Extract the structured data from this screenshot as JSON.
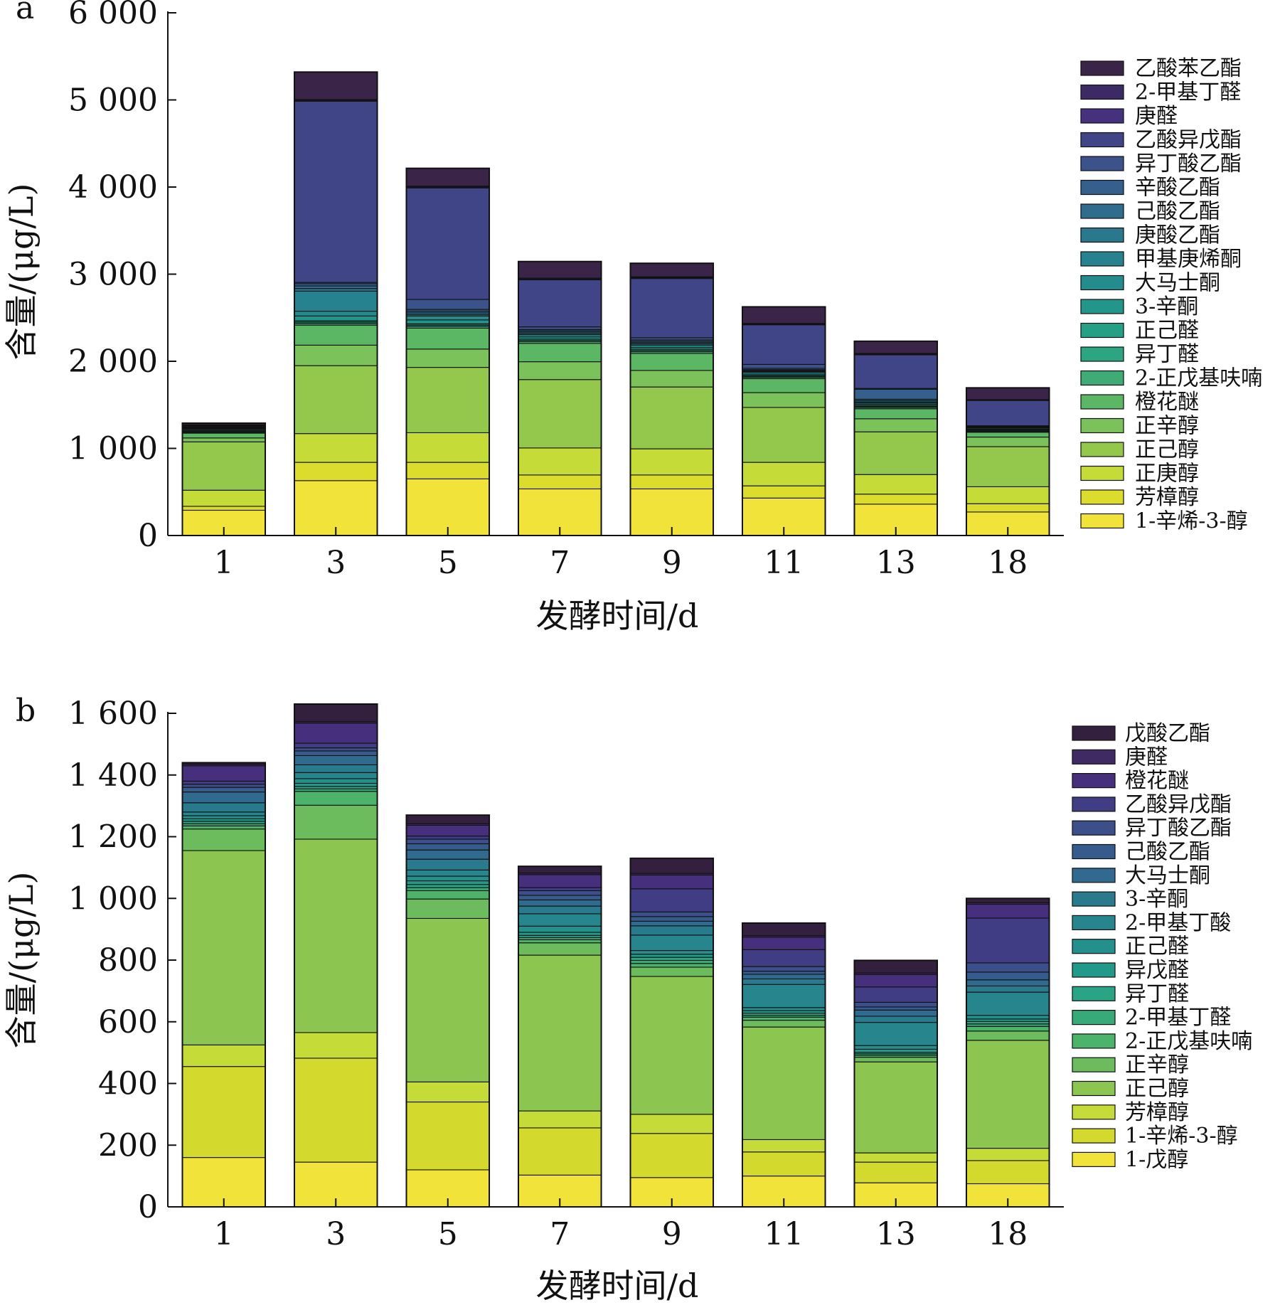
{
  "chart_data": [
    {
      "type": "stacked-bar",
      "panel_label": "a",
      "xlabel": "发酵时间/d",
      "ylabel": "含量/(μg/L)",
      "ylim": [
        0,
        6000
      ],
      "yticks": [
        0,
        1000,
        2000,
        3000,
        4000,
        5000,
        6000
      ],
      "ytick_labels": [
        "0",
        "1 000",
        "2 000",
        "3 000",
        "4 000",
        "5 000",
        "6 000"
      ],
      "categories": [
        "1",
        "3",
        "5",
        "7",
        "9",
        "11",
        "13",
        "18"
      ],
      "legend_position": "right",
      "series": [
        {
          "name": "1-辛烯-3-醇",
          "color": "#f2e33a",
          "values": [
            290,
            630,
            650,
            535,
            535,
            430,
            360,
            270
          ]
        },
        {
          "name": "芳樟醇",
          "color": "#dcdc2c",
          "values": [
            45,
            210,
            190,
            160,
            160,
            140,
            115,
            95
          ]
        },
        {
          "name": "正庚醇",
          "color": "#c4db38",
          "values": [
            185,
            330,
            340,
            310,
            300,
            270,
            225,
            195
          ]
        },
        {
          "name": "正己醇",
          "color": "#93c84c",
          "values": [
            555,
            780,
            750,
            785,
            710,
            630,
            490,
            460
          ]
        },
        {
          "name": "正辛醇",
          "color": "#7cc25a",
          "values": [
            45,
            235,
            210,
            205,
            190,
            170,
            150,
            110
          ]
        },
        {
          "name": "橙花醚",
          "color": "#5cb765",
          "values": [
            55,
            230,
            240,
            210,
            195,
            160,
            115,
            55
          ]
        },
        {
          "name": "2-正戊基呋喃",
          "color": "#3fac75",
          "values": [
            10,
            20,
            20,
            20,
            20,
            15,
            15,
            10
          ]
        },
        {
          "name": "异丁醛",
          "color": "#2ca682",
          "values": [
            8,
            15,
            15,
            15,
            15,
            12,
            10,
            8
          ]
        },
        {
          "name": "正己醛",
          "color": "#24a085",
          "values": [
            10,
            15,
            15,
            15,
            15,
            12,
            12,
            10
          ]
        },
        {
          "name": "3-辛酮",
          "color": "#22968a",
          "values": [
            12,
            55,
            45,
            25,
            20,
            15,
            15,
            10
          ]
        },
        {
          "name": "大马士酮",
          "color": "#238c8c",
          "values": [
            10,
            55,
            45,
            25,
            25,
            20,
            15,
            12
          ]
        },
        {
          "name": "甲基庚烯酮",
          "color": "#26828e",
          "values": [
            5,
            230,
            15,
            15,
            15,
            10,
            12,
            5
          ]
        },
        {
          "name": "庚酸乙酯",
          "color": "#2a788e",
          "values": [
            5,
            30,
            20,
            15,
            15,
            10,
            15,
            5
          ]
        },
        {
          "name": "己酸乙酯",
          "color": "#306c8e",
          "values": [
            5,
            30,
            20,
            15,
            15,
            10,
            15,
            5
          ]
        },
        {
          "name": "辛酸乙酯",
          "color": "#35608d",
          "values": [
            5,
            25,
            20,
            15,
            15,
            15,
            115,
            5
          ]
        },
        {
          "name": "异丁酸乙酯",
          "color": "#3b528b",
          "values": [
            5,
            15,
            115,
            30,
            25,
            45,
            10,
            5
          ]
        },
        {
          "name": "乙酸异戊酯",
          "color": "#404587",
          "values": [
            10,
            2080,
            1280,
            540,
            680,
            455,
            385,
            290
          ]
        },
        {
          "name": "庚醛",
          "color": "#46317e",
          "values": [
            5,
            10,
            10,
            10,
            10,
            8,
            8,
            5
          ]
        },
        {
          "name": "2-甲基丁醛",
          "color": "#3b2a64",
          "values": [
            5,
            10,
            10,
            10,
            10,
            8,
            8,
            5
          ]
        },
        {
          "name": "乙酸苯乙酯",
          "color": "#3a2448",
          "values": [
            20,
            315,
            205,
            190,
            155,
            190,
            140,
            135
          ]
        }
      ]
    },
    {
      "type": "stacked-bar",
      "panel_label": "b",
      "xlabel": "发酵时间/d",
      "ylabel": "含量/(μg/L)",
      "ylim": [
        0,
        1600
      ],
      "yticks": [
        0,
        200,
        400,
        600,
        800,
        1000,
        1200,
        1400,
        1600
      ],
      "ytick_labels": [
        "0",
        "200",
        "400",
        "600",
        "800",
        "1 000",
        "1 200",
        "1 400",
        "1 600"
      ],
      "categories": [
        "1",
        "3",
        "5",
        "7",
        "9",
        "11",
        "13",
        "18"
      ],
      "legend_position": "right",
      "series": [
        {
          "name": "1-戊醇",
          "color": "#f2e33a",
          "values": [
            160,
            145,
            120,
            103,
            95,
            100,
            78,
            75
          ]
        },
        {
          "name": "1-辛烯-3-醇",
          "color": "#d4d92e",
          "values": [
            295,
            337,
            220,
            153,
            143,
            78,
            67,
            75
          ]
        },
        {
          "name": "芳樟醇",
          "color": "#c4db38",
          "values": [
            70,
            83,
            65,
            55,
            62,
            40,
            30,
            40
          ]
        },
        {
          "name": "正己醇",
          "color": "#8cc54f",
          "values": [
            630,
            627,
            530,
            505,
            447,
            365,
            295,
            350
          ]
        },
        {
          "name": "正辛醇",
          "color": "#6cbc5e",
          "values": [
            70,
            110,
            63,
            40,
            30,
            22,
            15,
            30
          ]
        },
        {
          "name": "2-正戊基呋喃",
          "color": "#4cb36b",
          "values": [
            10,
            45,
            27,
            10,
            12,
            10,
            6,
            15
          ]
        },
        {
          "name": "2-甲基丁醛",
          "color": "#38a979",
          "values": [
            7,
            8,
            10,
            7,
            10,
            6,
            5,
            8
          ]
        },
        {
          "name": "异丁醛",
          "color": "#29a484",
          "values": [
            8,
            8,
            10,
            7,
            10,
            7,
            5,
            8
          ]
        },
        {
          "name": "异戊醛",
          "color": "#229a89",
          "values": [
            8,
            10,
            12,
            10,
            10,
            8,
            10,
            8
          ]
        },
        {
          "name": "正己醛",
          "color": "#23908c",
          "values": [
            10,
            15,
            15,
            20,
            12,
            10,
            12,
            12
          ]
        },
        {
          "name": "2-甲基丁酸",
          "color": "#27858e",
          "values": [
            12,
            20,
            20,
            40,
            50,
            75,
            75,
            75
          ]
        },
        {
          "name": "3-辛酮",
          "color": "#2a7a8e",
          "values": [
            30,
            25,
            35,
            25,
            30,
            18,
            20,
            20
          ]
        },
        {
          "name": "大马士酮",
          "color": "#306a8e",
          "values": [
            35,
            30,
            30,
            20,
            15,
            15,
            20,
            20
          ]
        },
        {
          "name": "己酸乙酯",
          "color": "#365c8d",
          "values": [
            15,
            15,
            20,
            15,
            15,
            10,
            10,
            25
          ]
        },
        {
          "name": "异丁酸乙酯",
          "color": "#3c4f8a",
          "values": [
            10,
            10,
            15,
            15,
            15,
            15,
            15,
            30
          ]
        },
        {
          "name": "乙酸异戊酯",
          "color": "#413d84",
          "values": [
            10,
            15,
            10,
            10,
            75,
            55,
            50,
            145
          ]
        },
        {
          "name": "橙花醚",
          "color": "#462f7c",
          "values": [
            50,
            65,
            35,
            42,
            45,
            40,
            40,
            45
          ]
        },
        {
          "name": "庚醛",
          "color": "#3f2a63",
          "values": [
            5,
            5,
            5,
            5,
            5,
            5,
            5,
            5
          ]
        },
        {
          "name": "戊酸乙酯",
          "color": "#33203e",
          "values": [
            5,
            57,
            28,
            22,
            49,
            41,
            41,
            14
          ]
        }
      ]
    }
  ]
}
